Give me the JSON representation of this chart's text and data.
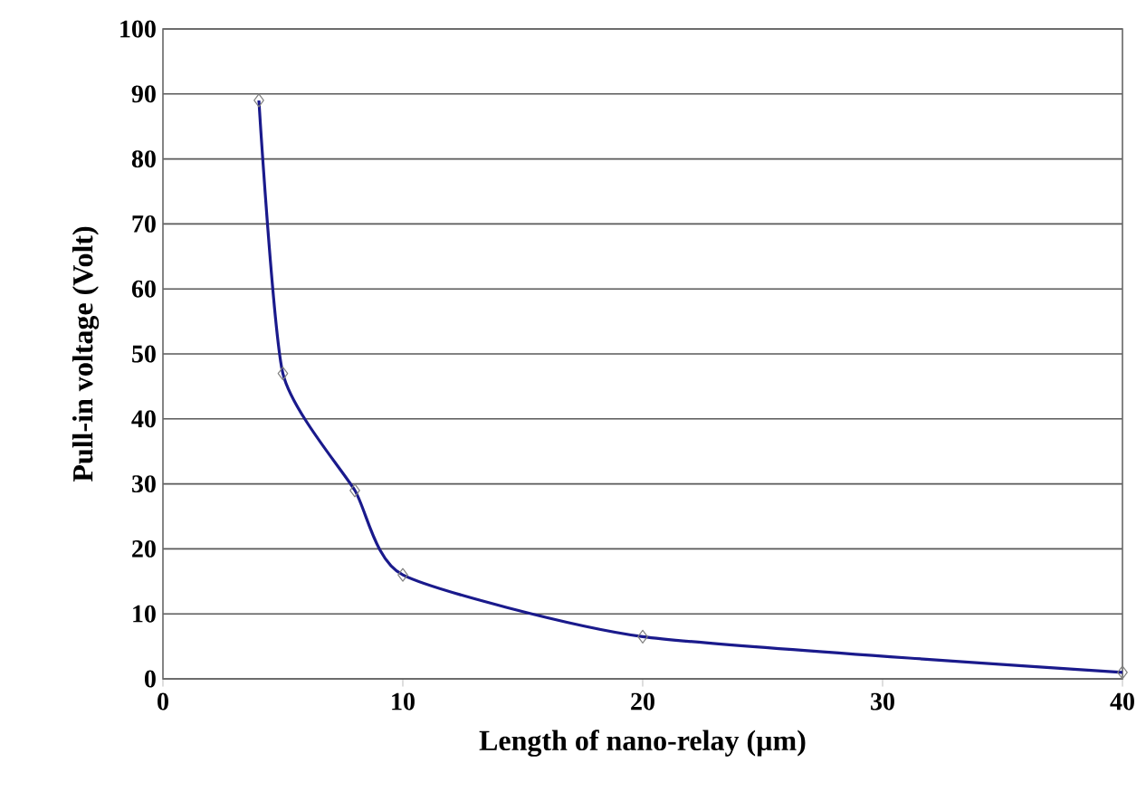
{
  "chart_data": {
    "type": "line",
    "xlabel": "Length of nano-relay (µm)",
    "ylabel": "Pull-in voltage (Volt)",
    "x": [
      4,
      5,
      8,
      10,
      20,
      40
    ],
    "series": [
      {
        "color": "#1a1a8c",
        "values": [
          89,
          47,
          29,
          16,
          6.5,
          1
        ]
      }
    ],
    "xlim": [
      0,
      40
    ],
    "xticks": [
      0,
      10,
      20,
      30,
      40
    ],
    "ylim": [
      0,
      100
    ],
    "yticks": [
      0,
      10,
      20,
      30,
      40,
      50,
      60,
      70,
      80,
      90,
      100
    ],
    "grid": "y",
    "marker": "diamond",
    "line_style": "solid"
  }
}
